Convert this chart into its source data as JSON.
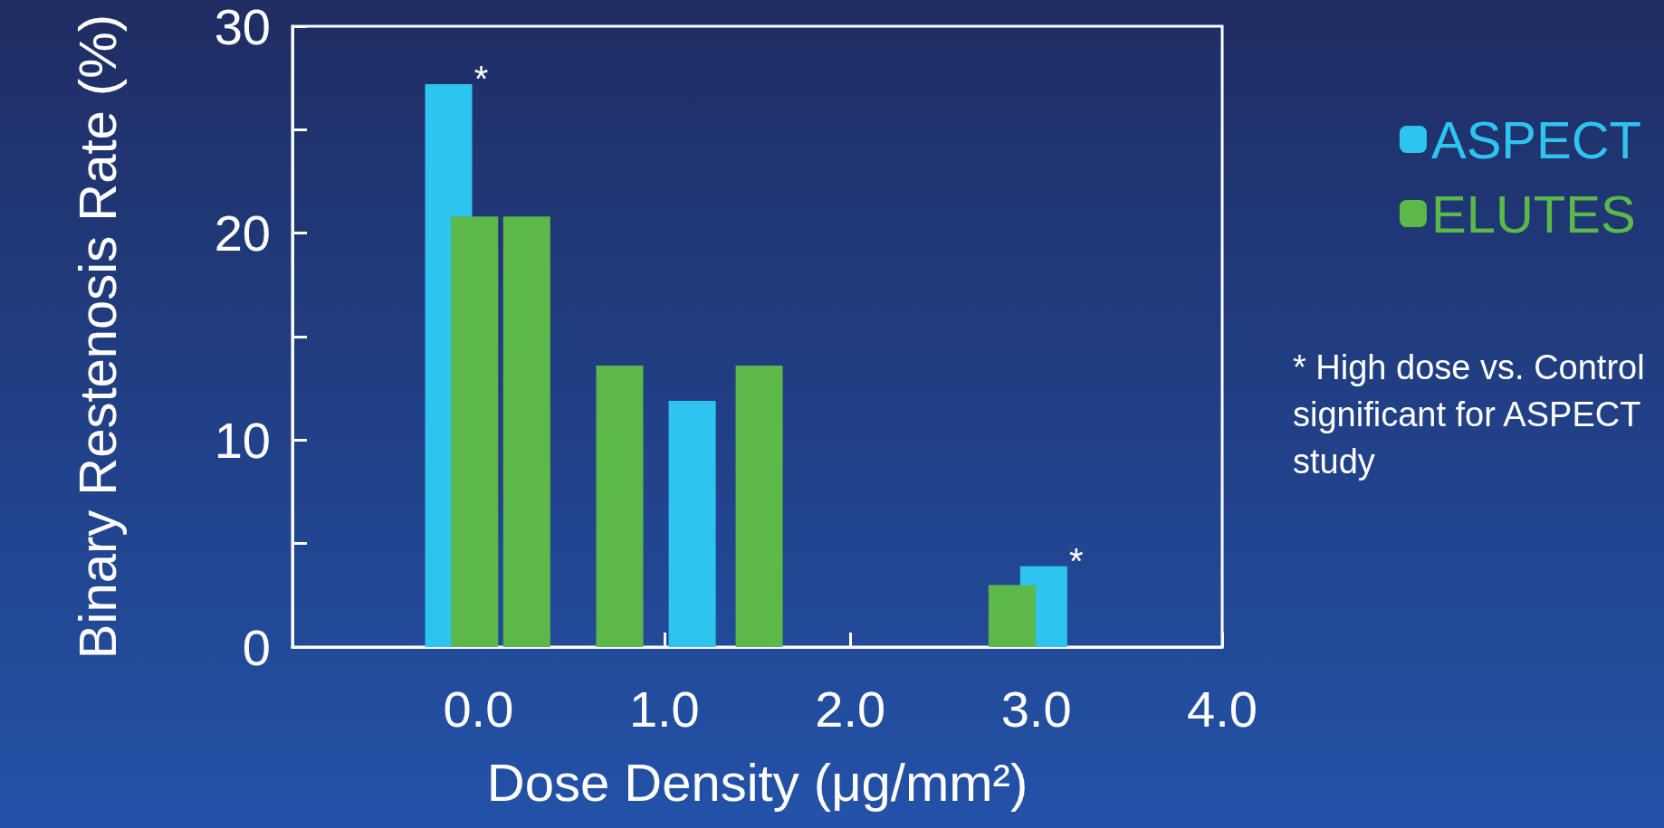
{
  "chart_data": {
    "type": "bar",
    "xlabel": "Dose Density (μg/mm²)",
    "ylabel": "Binary Restenosis Rate (%)",
    "series": [
      {
        "name": "ASPECT",
        "color": "#2ec4f0",
        "x": [
          -0.16,
          1.15,
          3.04
        ],
        "values": [
          27.2,
          11.9,
          3.9
        ]
      },
      {
        "name": "ELUTES",
        "color": "#5cb848",
        "x": [
          -0.02,
          0.26,
          0.76,
          1.51,
          2.87
        ],
        "values": [
          20.8,
          20.8,
          13.6,
          13.6,
          3.0
        ]
      }
    ],
    "xlim": [
      -1,
      4
    ],
    "xticks": [
      {
        "value": 0,
        "label": "0.0"
      },
      {
        "value": 1,
        "label": "1.0"
      },
      {
        "value": 2,
        "label": "2.0"
      },
      {
        "value": 3,
        "label": "3.0"
      },
      {
        "value": 4,
        "label": "4.0"
      }
    ],
    "ylim": [
      0,
      30
    ],
    "yticks": [
      0,
      {
        "value": 5,
        "label": null
      },
      10,
      {
        "value": 15,
        "label": null
      },
      20,
      {
        "value": 25,
        "label": null
      },
      30
    ],
    "annotations": [
      {
        "text": "*",
        "x": -0.16,
        "y": 27.2
      },
      {
        "text": "*",
        "x": 3.04,
        "y": 3.9
      },
      "* High dose vs. Control significant for ASPECT study"
    ],
    "legend": "right",
    "grid": false
  }
}
